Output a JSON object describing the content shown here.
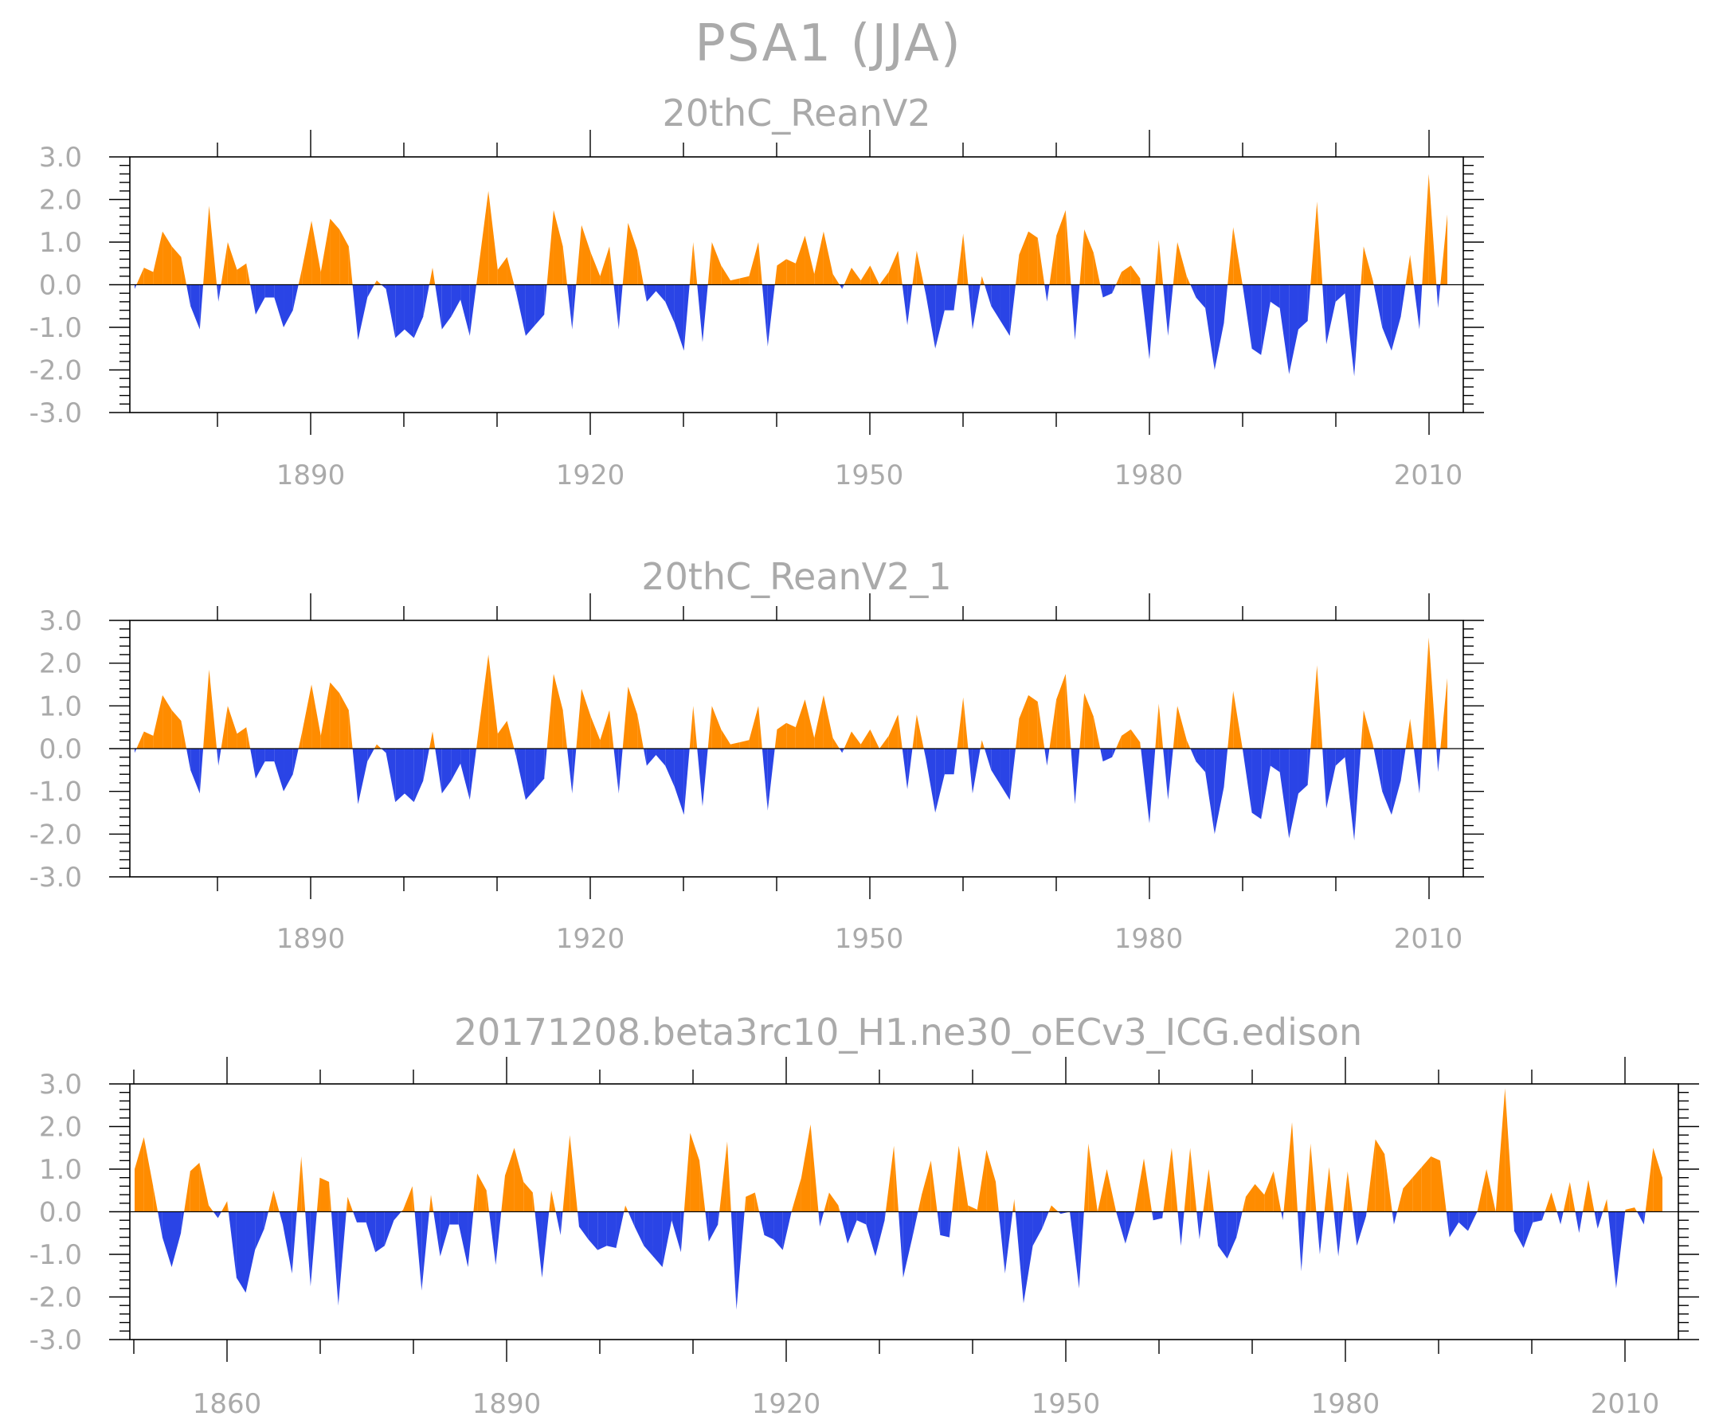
{
  "figure_title": "PSA1  (JJA)",
  "colors": {
    "positive": "#ff8c00",
    "negative": "#2a44e6",
    "text": "#aaaaaa",
    "frame": "#000000"
  },
  "chart_data": [
    {
      "type": "area",
      "title": "20thC_ReanV2",
      "xlabel": "",
      "ylabel": "",
      "xlim": [
        1871,
        2012
      ],
      "ylim": [
        -3.0,
        3.0
      ],
      "yticks": [
        "3.0",
        "2.0",
        "1.0",
        "0.0",
        "-1.0",
        "-2.0",
        "-3.0"
      ],
      "xticks": [
        "1890",
        "1920",
        "1950",
        "1980",
        "2010"
      ],
      "x_start": 1871,
      "values": [
        -0.1,
        0.4,
        0.3,
        1.25,
        0.9,
        0.65,
        -0.5,
        -1.05,
        1.85,
        -0.4,
        1.0,
        0.35,
        0.5,
        -0.7,
        -0.3,
        -0.3,
        -1.0,
        -0.6,
        0.4,
        1.5,
        0.3,
        1.55,
        1.3,
        0.9,
        -1.3,
        -0.3,
        0.1,
        -0.1,
        -1.25,
        -1.05,
        -1.25,
        -0.75,
        0.4,
        -1.05,
        -0.75,
        -0.35,
        -1.2,
        0.5,
        2.2,
        0.35,
        0.65,
        -0.2,
        -1.2,
        -0.95,
        -0.7,
        1.75,
        0.9,
        -1.05,
        1.4,
        0.75,
        0.2,
        0.9,
        -1.05,
        1.45,
        0.8,
        -0.4,
        -0.15,
        -0.4,
        -0.9,
        -1.55,
        1.0,
        -1.35,
        1.0,
        0.45,
        0.1,
        0.15,
        0.2,
        1.0,
        -1.45,
        0.45,
        0.6,
        0.5,
        1.15,
        0.25,
        1.25,
        0.25,
        -0.1,
        0.4,
        0.1,
        0.45,
        0.0,
        0.3,
        0.8,
        -0.95,
        0.8,
        -0.25,
        -1.5,
        -0.6,
        -0.6,
        1.2,
        -1.05,
        0.2,
        -0.5,
        -0.85,
        -1.2,
        0.7,
        1.25,
        1.1,
        -0.4,
        1.15,
        1.75,
        -1.3,
        1.3,
        0.75,
        -0.3,
        -0.2,
        0.3,
        0.45,
        0.15,
        -1.75,
        1.05,
        -1.2,
        1.0,
        0.2,
        -0.3,
        -0.55,
        -2.0,
        -0.9,
        1.35,
        0.0,
        -1.5,
        -1.65,
        -0.4,
        -0.55,
        -2.1,
        -1.05,
        -0.85,
        1.95,
        -1.4,
        -0.4,
        -0.2,
        -2.15,
        0.9,
        0.1,
        -1.0,
        -1.55,
        -0.75,
        0.7,
        -1.05,
        2.6,
        -0.55,
        1.65
      ]
    },
    {
      "type": "area",
      "title": "20thC_ReanV2_1",
      "xlabel": "",
      "ylabel": "",
      "xlim": [
        1871,
        2012
      ],
      "ylim": [
        -3.0,
        3.0
      ],
      "yticks": [
        "3.0",
        "2.0",
        "1.0",
        "0.0",
        "-1.0",
        "-2.0",
        "-3.0"
      ],
      "xticks": [
        "1890",
        "1920",
        "1950",
        "1980",
        "2010"
      ],
      "x_start": 1871,
      "values": [
        -0.1,
        0.4,
        0.3,
        1.25,
        0.9,
        0.65,
        -0.5,
        -1.05,
        1.85,
        -0.4,
        1.0,
        0.35,
        0.5,
        -0.7,
        -0.3,
        -0.3,
        -1.0,
        -0.6,
        0.4,
        1.5,
        0.3,
        1.55,
        1.3,
        0.9,
        -1.3,
        -0.3,
        0.1,
        -0.1,
        -1.25,
        -1.05,
        -1.25,
        -0.75,
        0.4,
        -1.05,
        -0.75,
        -0.35,
        -1.2,
        0.5,
        2.2,
        0.35,
        0.65,
        -0.2,
        -1.2,
        -0.95,
        -0.7,
        1.75,
        0.9,
        -1.05,
        1.4,
        0.75,
        0.2,
        0.9,
        -1.05,
        1.45,
        0.8,
        -0.4,
        -0.15,
        -0.4,
        -0.9,
        -1.55,
        1.0,
        -1.35,
        1.0,
        0.45,
        0.1,
        0.15,
        0.2,
        1.0,
        -1.45,
        0.45,
        0.6,
        0.5,
        1.15,
        0.25,
        1.25,
        0.25,
        -0.1,
        0.4,
        0.1,
        0.45,
        0.0,
        0.3,
        0.8,
        -0.95,
        0.8,
        -0.25,
        -1.5,
        -0.6,
        -0.6,
        1.2,
        -1.05,
        0.2,
        -0.5,
        -0.85,
        -1.2,
        0.7,
        1.25,
        1.1,
        -0.4,
        1.15,
        1.75,
        -1.3,
        1.3,
        0.75,
        -0.3,
        -0.2,
        0.3,
        0.45,
        0.15,
        -1.75,
        1.05,
        -1.2,
        1.0,
        0.2,
        -0.3,
        -0.55,
        -2.0,
        -0.9,
        1.35,
        0.0,
        -1.5,
        -1.65,
        -0.4,
        -0.55,
        -2.1,
        -1.05,
        -0.85,
        1.95,
        -1.4,
        -0.4,
        -0.2,
        -2.15,
        0.9,
        0.1,
        -1.0,
        -1.55,
        -0.75,
        0.7,
        -1.05,
        2.6,
        -0.55,
        1.65
      ]
    },
    {
      "type": "area",
      "title": "20171208.beta3rc10_H1.ne30_oECv3_ICG.edison",
      "xlabel": "",
      "ylabel": "",
      "xlim": [
        1850,
        2014
      ],
      "ylim": [
        -3.0,
        3.0
      ],
      "yticks": [
        "3.0",
        "2.0",
        "1.0",
        "0.0",
        "-1.0",
        "-2.0",
        "-3.0"
      ],
      "xticks": [
        "1860",
        "1890",
        "1920",
        "1950",
        "1980",
        "2010"
      ],
      "x_start": 1850,
      "values": [
        1.0,
        1.75,
        0.6,
        -0.6,
        -1.3,
        -0.5,
        0.95,
        1.15,
        0.15,
        -0.15,
        0.25,
        -1.55,
        -1.9,
        -0.9,
        -0.4,
        0.5,
        -0.3,
        -1.45,
        1.3,
        -1.75,
        0.8,
        0.7,
        -2.2,
        0.35,
        -0.25,
        -0.25,
        -0.95,
        -0.8,
        -0.2,
        0.05,
        0.6,
        -1.85,
        0.4,
        -1.05,
        -0.3,
        -0.3,
        -1.3,
        0.9,
        0.5,
        -1.25,
        0.85,
        1.5,
        0.7,
        0.45,
        -1.55,
        0.5,
        -0.55,
        1.8,
        -0.35,
        -0.65,
        -0.9,
        -0.8,
        -0.85,
        0.15,
        -0.35,
        -0.8,
        -1.05,
        -1.3,
        -0.2,
        -0.95,
        1.85,
        1.2,
        -0.7,
        -0.3,
        1.65,
        -2.3,
        0.35,
        0.45,
        -0.55,
        -0.65,
        -0.9,
        0.05,
        0.8,
        2.05,
        -0.35,
        0.45,
        0.15,
        -0.75,
        -0.2,
        -0.3,
        -1.05,
        -0.2,
        1.55,
        -1.55,
        -0.6,
        0.4,
        1.2,
        -0.55,
        -0.6,
        1.55,
        0.15,
        0.05,
        1.45,
        0.7,
        -1.45,
        0.3,
        -2.15,
        -0.8,
        -0.4,
        0.15,
        -0.05,
        0.0,
        -1.8,
        1.6,
        0.0,
        1.0,
        0.0,
        -0.75,
        0.0,
        1.25,
        -0.2,
        -0.15,
        1.5,
        -0.8,
        1.5,
        -0.65,
        1.0,
        -0.8,
        -1.1,
        -0.6,
        0.35,
        0.65,
        0.4,
        0.95,
        -0.2,
        2.1,
        -1.4,
        1.6,
        -1.0,
        1.05,
        -1.05,
        0.95,
        -0.8,
        -0.1,
        1.7,
        1.35,
        -0.3,
        0.55,
        0.8,
        1.05,
        1.3,
        1.2,
        -0.6,
        -0.25,
        -0.45,
        0.0,
        1.0,
        0.0,
        2.9,
        -0.45,
        -0.85,
        -0.25,
        -0.2,
        0.45,
        -0.3,
        0.7,
        -0.5,
        0.75,
        -0.4,
        0.3,
        -1.8,
        0.05,
        0.1,
        -0.3,
        1.5,
        0.8
      ]
    }
  ]
}
